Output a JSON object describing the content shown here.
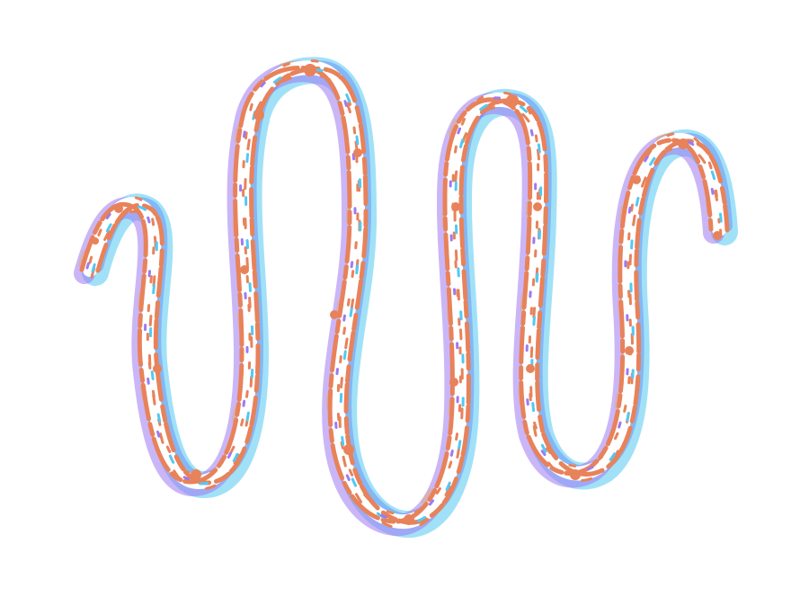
{
  "artwork": {
    "subject": "squiggle-icon",
    "colors": {
      "primary": "#E8825A",
      "cyan": "#54C8F2",
      "purple": "#9E7AF0",
      "blue": "#4D6BF0",
      "amber": "#F2A640",
      "background": "#FFFFFF"
    }
  }
}
